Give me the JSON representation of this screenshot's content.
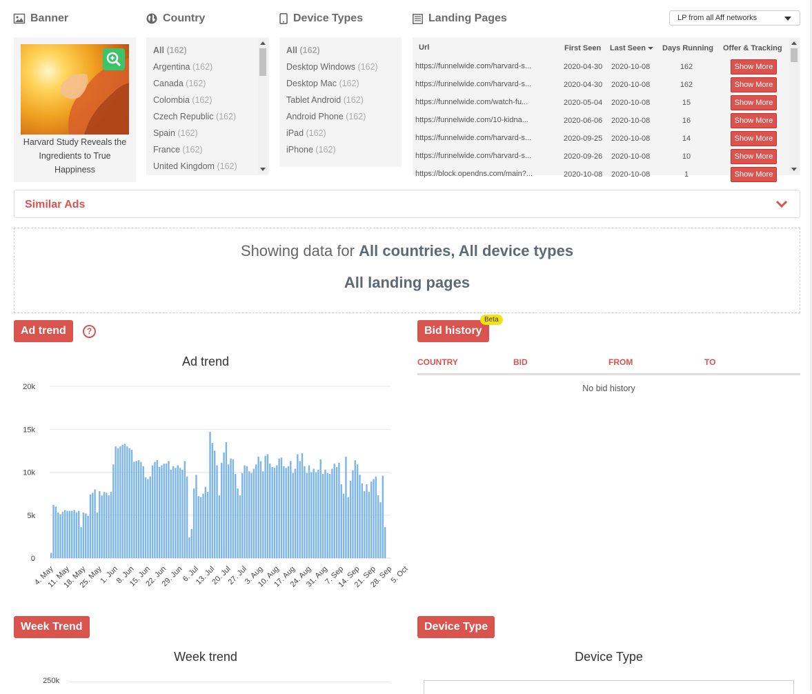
{
  "banner": {
    "title": "Banner",
    "caption": "Harvard Study Reveals the Ingredients to True Happiness"
  },
  "country": {
    "title": "Country",
    "items": [
      {
        "label": "All",
        "count": "(162)"
      },
      {
        "label": "Argentina",
        "count": "(162)"
      },
      {
        "label": "Canada",
        "count": "(162)"
      },
      {
        "label": "Colombia",
        "count": "(162)"
      },
      {
        "label": "Czech Republic",
        "count": "(162)"
      },
      {
        "label": "Spain",
        "count": "(162)"
      },
      {
        "label": "France",
        "count": "(162)"
      },
      {
        "label": "United Kingdom",
        "count": "(162)"
      }
    ]
  },
  "devices": {
    "title": "Device Types",
    "items": [
      {
        "label": "All",
        "count": "(162)"
      },
      {
        "label": "Desktop Windows",
        "count": "(162)"
      },
      {
        "label": "Desktop Mac",
        "count": "(162)"
      },
      {
        "label": "Tablet Android",
        "count": "(162)"
      },
      {
        "label": "Android Phone",
        "count": "(162)"
      },
      {
        "label": "iPad",
        "count": "(162)"
      },
      {
        "label": "iPhone",
        "count": "(162)"
      }
    ]
  },
  "landing": {
    "title": "Landing Pages",
    "select_value": "LP from all Aff networks",
    "headers": {
      "url": "Url",
      "first": "First Seen",
      "last": "Last Seen",
      "days": "Days Running",
      "offer": "Offer & Tracking"
    },
    "show_more_label": "Show More",
    "rows": [
      {
        "url": "https://funnelwide.com/harvard-s...",
        "first": "2020-04-30",
        "last": "2020-10-08",
        "days": "162"
      },
      {
        "url": "https://funnelwide.com/harvard-s...",
        "first": "2020-04-30",
        "last": "2020-10-08",
        "days": "162"
      },
      {
        "url": "https://funnelwide.com/watch-fu...",
        "first": "2020-05-04",
        "last": "2020-10-08",
        "days": "15"
      },
      {
        "url": "https://funnelwide.com/10-kidna...",
        "first": "2020-06-06",
        "last": "2020-10-08",
        "days": "16"
      },
      {
        "url": "https://funnelwide.com/harvard-s...",
        "first": "2020-09-25",
        "last": "2020-10-08",
        "days": "14"
      },
      {
        "url": "https://funnelwide.com/harvard-s...",
        "first": "2020-09-26",
        "last": "2020-10-08",
        "days": "10"
      },
      {
        "url": "https://block.opendns.com/main?...",
        "first": "2020-10-08",
        "last": "2020-10-08",
        "days": "1"
      }
    ]
  },
  "similar": {
    "label": "Similar Ads"
  },
  "showing": {
    "prefix": "Showing data for ",
    "bold": "All countries, All device types",
    "line2": "All landing pages"
  },
  "ad_trend": {
    "badge": "Ad trend",
    "help": "?"
  },
  "bid_history": {
    "badge": "Bid history",
    "beta": "Beta",
    "headers": [
      "COUNTRY",
      "BID",
      "FROM",
      "TO"
    ],
    "empty": "No bid history"
  },
  "week_trend": {
    "badge": "Week Trend",
    "chart_title": "Week trend",
    "first_tick": "250k"
  },
  "device_type": {
    "badge": "Device Type",
    "chart_title": "Device Type"
  },
  "colors": {
    "accent": "#d9534f",
    "bar": "#7cb5ec",
    "beta": "#f5e11a"
  },
  "chart_data": {
    "type": "bar",
    "title": "Ad trend",
    "xlabel": "",
    "ylabel": "",
    "ylim": [
      0,
      20000
    ],
    "yticks": [
      "0",
      "5k",
      "10k",
      "15k",
      "20k"
    ],
    "xtick_labels": [
      "4. May",
      "11. May",
      "18. May",
      "25. May",
      "1. Jun",
      "8. Jun",
      "15. Jun",
      "22. Jun",
      "29. Jun",
      "6. Jul",
      "13. Jul",
      "20. Jul",
      "27. Jul",
      "3. Aug",
      "10. Aug",
      "17. Aug",
      "24. Aug",
      "31. Aug",
      "7. Sep",
      "14. Sep",
      "21. Sep",
      "28. Sep",
      "5. Oct"
    ],
    "start_date": "2020-05-03",
    "values": [
      600,
      6200,
      6000,
      5300,
      5100,
      5400,
      5600,
      5500,
      5500,
      5500,
      5600,
      5300,
      5500,
      3600,
      5300,
      5200,
      4900,
      7400,
      7600,
      8000,
      5300,
      7800,
      7300,
      7700,
      7600,
      7300,
      7700,
      10900,
      13000,
      12800,
      13000,
      13200,
      13300,
      13000,
      12800,
      12600,
      11200,
      11300,
      11400,
      11200,
      10700,
      9400,
      9200,
      9500,
      10800,
      11200,
      11400,
      10600,
      10800,
      11000,
      11000,
      11300,
      10300,
      10700,
      10500,
      10800,
      10500,
      10300,
      11300,
      9500,
      2400,
      3400,
      8100,
      9700,
      7200,
      7100,
      7500,
      8300,
      7700,
      14700,
      13400,
      12500,
      10800,
      7300,
      11100,
      12300,
      13500,
      10900,
      11600,
      11500,
      9800,
      8100,
      7300,
      9900,
      10800,
      10700,
      10100,
      9900,
      10400,
      10900,
      11800,
      11300,
      10100,
      11900,
      12100,
      11000,
      10600,
      10500,
      10800,
      11600,
      11700,
      10700,
      10500,
      10700,
      11300,
      9900,
      10400,
      12100,
      11300,
      12200,
      10700,
      9900,
      10800,
      10000,
      10400,
      10000,
      10300,
      11500,
      9800,
      10300,
      9900,
      9800,
      10400,
      11000,
      10600,
      11100,
      8600,
      7500,
      11800,
      7100,
      9000,
      10200,
      11400,
      10900,
      9700,
      8700,
      7800,
      8600,
      7700,
      8900,
      9200,
      9500,
      7300,
      6500,
      9600,
      3600
    ]
  }
}
